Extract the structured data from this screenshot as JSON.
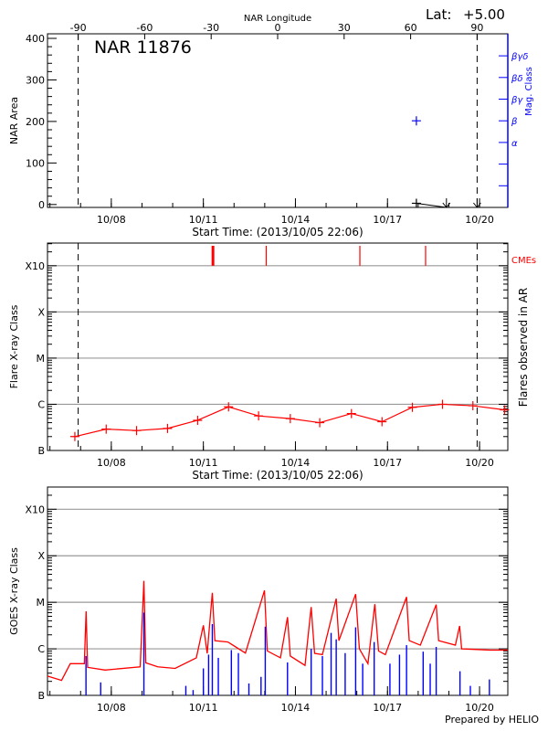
{
  "header": {
    "lat_label": "Lat:",
    "lat_value": "+5.00"
  },
  "footer": {
    "credit": "Prepared by HELIO"
  },
  "colors": {
    "axis": "#000000",
    "grid": "#999999",
    "flare": "#ff0000",
    "mag": "#0000ff",
    "goes": "#ff0000",
    "ar_flares": "#0000ff",
    "cme": "#ff0000"
  },
  "chart_data": [
    {
      "type": "scatter",
      "title": "NAR 11876",
      "top_xlabel": "NAR Longitude",
      "top_xticks": [
        "-90",
        "-60",
        "-30",
        "0",
        "30",
        "60",
        "90"
      ],
      "xlabel": "Start Time: (2013/10/05 22:06)",
      "ylabel": "NAR Area",
      "y2label": "Mag. Class",
      "xlim": [
        "2013-10-05 22:06",
        "2013-10-20 22:06"
      ],
      "xticks": [
        "10/08",
        "10/11",
        "10/14",
        "10/17",
        "10/20"
      ],
      "ylim": [
        -7,
        411
      ],
      "yticks": [
        "0",
        "100",
        "200",
        "300",
        "400"
      ],
      "y2ticks": [
        "α",
        "β",
        "βγ",
        "βδ",
        "βγδ"
      ],
      "limb_markers": [
        "2013-10-06 22:06",
        "2013-10-19 22:06"
      ],
      "area": [
        {
          "t": "2013-10-17 22:36",
          "value": 3
        }
      ],
      "area_off_disk": [
        "2013-10-18 22:06",
        "2013-10-19 22:06"
      ],
      "mag_class": [
        {
          "t": "2013-10-17 22:36",
          "class": "β"
        }
      ]
    },
    {
      "type": "line",
      "xlabel": "Start Time: (2013/10/05 22:06)",
      "ylabel": "Flare X-ray Class",
      "y2label": "Flares observed in AR",
      "legend": "CMEs",
      "xlim": [
        "2013-10-05 22:06",
        "2013-10-20 22:06"
      ],
      "xticks": [
        "10/08",
        "10/11",
        "10/14",
        "10/17",
        "10/20"
      ],
      "ylim": [
        1e-07,
        0.0031
      ],
      "yscale": "log",
      "yticks": [
        {
          "label": "B",
          "flux": 1e-07
        },
        {
          "label": "C",
          "flux": 1e-06
        },
        {
          "label": "M",
          "flux": 1e-05
        },
        {
          "label": "X",
          "flux": 0.0001
        },
        {
          "label": "X10",
          "flux": 0.001
        }
      ],
      "grid": true,
      "limb_markers": [
        "2013-10-06 22:06",
        "2013-10-19 22:06"
      ],
      "flares": [
        [
          "2013-10-06 19:30",
          2e-07
        ],
        [
          "2013-10-07 20:00",
          2.9e-07
        ],
        [
          "2013-10-08 19:48",
          2.7e-07
        ],
        [
          "2013-10-09 20:00",
          3e-07
        ],
        [
          "2013-10-10 19:30",
          4.5e-07
        ],
        [
          "2013-10-11 19:42",
          8.8e-07
        ],
        [
          "2013-10-12 19:12",
          5.6e-07
        ],
        [
          "2013-10-13 20:00",
          4.9e-07
        ],
        [
          "2013-10-14 19:00",
          4e-07
        ],
        [
          "2013-10-15 19:48",
          6.3e-07
        ],
        [
          "2013-10-16 19:42",
          4.2e-07
        ],
        [
          "2013-10-17 19:30",
          8.6e-07
        ],
        [
          "2013-10-18 19:00",
          1e-06
        ],
        [
          "2013-10-19 18:48",
          9.3e-07
        ],
        [
          "2013-10-20 19:30",
          7.6e-07
        ]
      ],
      "cmes": [
        {
          "t": "2013-10-11 07:30",
          "count": 2
        },
        {
          "t": "2013-10-13 01:12",
          "count": 1
        },
        {
          "t": "2013-10-16 02:24",
          "count": 1
        },
        {
          "t": "2013-10-18 05:48",
          "count": 1
        }
      ]
    },
    {
      "type": "line",
      "ylabel": "GOES X-ray Class",
      "xlim": [
        "2013-10-05 22:06",
        "2013-10-20 22:06"
      ],
      "xticks": [
        "10/08",
        "10/11",
        "10/14",
        "10/17",
        "10/20"
      ],
      "ylim": [
        1e-07,
        0.003
      ],
      "yscale": "log",
      "yticks": [
        {
          "label": "B",
          "flux": 1e-07
        },
        {
          "label": "C",
          "flux": 1e-06
        },
        {
          "label": "M",
          "flux": 1e-05
        },
        {
          "label": "X",
          "flux": 0.0001
        },
        {
          "label": "X10",
          "flux": 0.001
        }
      ],
      "grid": true,
      "goes_flux": [
        [
          "2013-10-05 22:06",
          2.6e-07
        ],
        [
          "2013-10-06 09:06",
          2.1e-07
        ],
        [
          "2013-10-06 15:54",
          4.8e-07
        ],
        [
          "2013-10-07 02:54",
          4.8e-07
        ],
        [
          "2013-10-07 04:18",
          6.4e-06
        ],
        [
          "2013-10-07 05:30",
          4e-07
        ],
        [
          "2013-10-07 19:12",
          3.5e-07
        ],
        [
          "2013-10-08 22:36",
          4.1e-07
        ],
        [
          "2013-10-09 01:30",
          2.9e-05
        ],
        [
          "2013-10-09 03:00",
          5e-07
        ],
        [
          "2013-10-09 12:18",
          4.1e-07
        ],
        [
          "2013-10-10 01:54",
          3.8e-07
        ],
        [
          "2013-10-10 18:30",
          6.4e-07
        ],
        [
          "2013-10-11 00:00",
          3.2e-06
        ],
        [
          "2013-10-11 03:00",
          8e-07
        ],
        [
          "2013-10-11 07:00",
          1.6e-05
        ],
        [
          "2013-10-11 09:00",
          1.5e-06
        ],
        [
          "2013-10-11 19:12",
          1.4e-06
        ],
        [
          "2013-10-12 08:54",
          8.1e-07
        ],
        [
          "2013-10-12 23:48",
          1.8e-05
        ],
        [
          "2013-10-13 02:00",
          9e-07
        ],
        [
          "2013-10-13 12:18",
          6.4e-07
        ],
        [
          "2013-10-13 17:48",
          4.8e-06
        ],
        [
          "2013-10-13 20:00",
          7e-07
        ],
        [
          "2013-10-14 07:30",
          4.4e-07
        ],
        [
          "2013-10-14 12:18",
          7.9e-06
        ],
        [
          "2013-10-14 15:00",
          8e-07
        ],
        [
          "2013-10-14 21:06",
          7.5e-07
        ],
        [
          "2013-10-15 07:54",
          1.2e-05
        ],
        [
          "2013-10-15 10:00",
          1.5e-06
        ],
        [
          "2013-10-15 23:06",
          1.5e-05
        ],
        [
          "2013-10-16 02:00",
          1e-06
        ],
        [
          "2013-10-16 08:42",
          4.8e-07
        ],
        [
          "2013-10-16 14:06",
          9.1e-06
        ],
        [
          "2013-10-16 17:00",
          9e-07
        ],
        [
          "2013-10-16 22:18",
          7.5e-07
        ],
        [
          "2013-10-17 14:54",
          1.3e-05
        ],
        [
          "2013-10-17 17:00",
          1.5e-06
        ],
        [
          "2013-10-18 01:42",
          1.2e-06
        ],
        [
          "2013-10-18 14:06",
          8.9e-06
        ],
        [
          "2013-10-18 16:00",
          1.5e-06
        ],
        [
          "2013-10-19 05:06",
          1.2e-06
        ],
        [
          "2013-10-19 08:24",
          3.1e-06
        ],
        [
          "2013-10-19 10:00",
          1e-06
        ],
        [
          "2013-10-20 08:24",
          9.4e-07
        ],
        [
          "2013-10-20 22:06",
          9.4e-07
        ]
      ],
      "ar_flares": [
        [
          "2013-10-07 04:12",
          7e-07
        ],
        [
          "2013-10-07 15:42",
          1.9e-07
        ],
        [
          "2013-10-09 01:30",
          6e-06
        ],
        [
          "2013-10-10 10:18",
          1.6e-07
        ],
        [
          "2013-10-10 16:00",
          1.3e-07
        ],
        [
          "2013-10-11 00:00",
          3.8e-07
        ],
        [
          "2013-10-11 04:06",
          7.5e-07
        ],
        [
          "2013-10-11 07:00",
          3.4e-06
        ],
        [
          "2013-10-11 11:42",
          6.4e-07
        ],
        [
          "2013-10-11 21:54",
          9.4e-07
        ],
        [
          "2013-10-12 03:24",
          8.1e-07
        ],
        [
          "2013-10-12 11:36",
          1.8e-07
        ],
        [
          "2013-10-12 21:06",
          2.5e-07
        ],
        [
          "2013-10-13 00:24",
          3e-06
        ],
        [
          "2013-10-13 17:48",
          5.1e-07
        ],
        [
          "2013-10-14 12:18",
          1e-06
        ],
        [
          "2013-10-14 21:06",
          7e-07
        ],
        [
          "2013-10-15 03:54",
          2.2e-06
        ],
        [
          "2013-10-15 07:54",
          1.6e-06
        ],
        [
          "2013-10-15 14:54",
          8.1e-07
        ],
        [
          "2013-10-15 23:06",
          2.9e-06
        ],
        [
          "2013-10-16 04:36",
          4.8e-07
        ],
        [
          "2013-10-16 13:36",
          1.4e-06
        ],
        [
          "2013-10-17 01:54",
          4.8e-07
        ],
        [
          "2013-10-17 09:24",
          7.5e-07
        ],
        [
          "2013-10-17 14:54",
          1.2e-06
        ],
        [
          "2013-10-18 03:54",
          8.7e-07
        ],
        [
          "2013-10-18 09:24",
          4.8e-07
        ],
        [
          "2013-10-18 14:06",
          1.1e-06
        ],
        [
          "2013-10-19 08:42",
          3.3e-07
        ],
        [
          "2013-10-19 16:48",
          1.6e-07
        ],
        [
          "2013-10-20 07:42",
          2.2e-07
        ]
      ]
    }
  ]
}
